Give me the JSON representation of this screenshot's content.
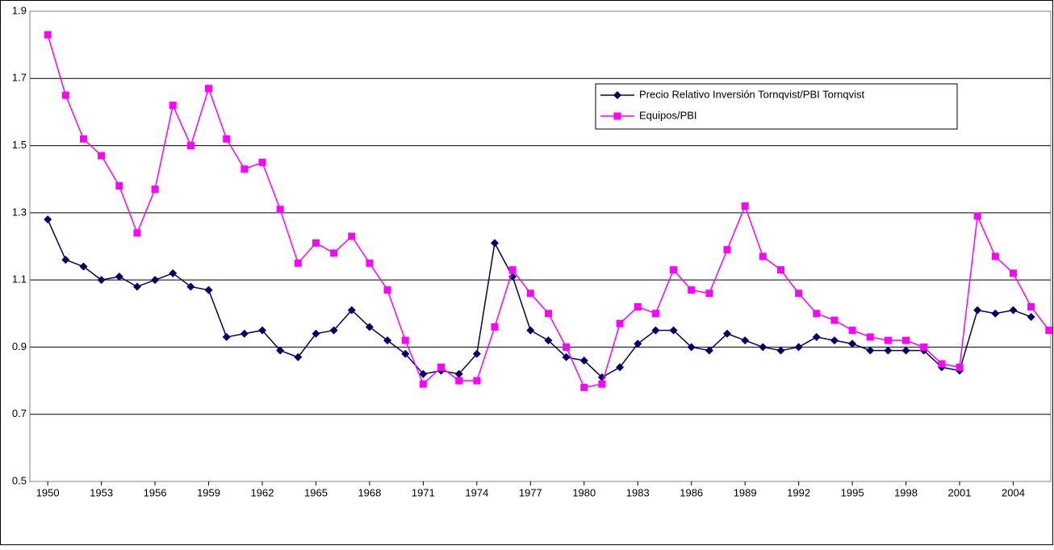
{
  "chart_data": {
    "type": "line",
    "x": [
      1950,
      1951,
      1952,
      1953,
      1954,
      1955,
      1956,
      1957,
      1958,
      1959,
      1960,
      1961,
      1962,
      1963,
      1964,
      1965,
      1966,
      1967,
      1968,
      1969,
      1970,
      1971,
      1972,
      1973,
      1974,
      1975,
      1976,
      1977,
      1978,
      1979,
      1980,
      1981,
      1982,
      1983,
      1984,
      1985,
      1986,
      1987,
      1988,
      1989,
      1990,
      1991,
      1992,
      1993,
      1994,
      1995,
      1996,
      1997,
      1998,
      1999,
      2000,
      2001,
      2002,
      2003,
      2004,
      2005,
      2006
    ],
    "xlim": [
      1949,
      2006.1
    ],
    "xticks": [
      1950,
      1953,
      1956,
      1959,
      1962,
      1965,
      1968,
      1971,
      1974,
      1977,
      1980,
      1983,
      1986,
      1989,
      1992,
      1995,
      1998,
      2001,
      2004
    ],
    "ylim": [
      0.5,
      1.9
    ],
    "yticks": [
      {
        "value": 0.5,
        "label": "0.5"
      },
      {
        "value": 0.7,
        "label": "0.7"
      },
      {
        "value": 0.9,
        "label": "0.9"
      },
      {
        "value": 1.1,
        "label": "1.1"
      },
      {
        "value": 1.3,
        "label": "1.3"
      },
      {
        "value": 1.5,
        "label": "1.5"
      },
      {
        "value": 1.7,
        "label": "1.7"
      },
      {
        "value": 1.9,
        "label": "1.9"
      }
    ],
    "grid": true,
    "legend": "upper-right",
    "series": [
      {
        "name": "Precio Relativo Inversión Tornqvist/PBI Tornqvist",
        "color": "#000066",
        "marker": "diamond",
        "values": [
          1.28,
          1.16,
          1.14,
          1.1,
          1.11,
          1.08,
          1.1,
          1.12,
          1.08,
          1.07,
          0.93,
          0.94,
          0.95,
          0.89,
          0.87,
          0.94,
          0.95,
          1.01,
          0.96,
          0.92,
          0.88,
          0.82,
          0.83,
          0.82,
          0.88,
          1.21,
          1.11,
          0.95,
          0.92,
          0.87,
          0.86,
          0.81,
          0.84,
          0.91,
          0.95,
          0.95,
          0.9,
          0.89,
          0.94,
          0.92,
          0.9,
          0.89,
          0.9,
          0.93,
          0.92,
          0.91,
          0.89,
          0.89,
          0.89,
          0.89,
          0.84,
          0.83,
          1.01,
          1.0,
          1.01,
          0.99,
          null
        ]
      },
      {
        "name": "Equipos/PBI",
        "color": "#ff00ff",
        "marker": "square",
        "values": [
          1.83,
          1.65,
          1.52,
          1.47,
          1.38,
          1.24,
          1.37,
          1.62,
          1.5,
          1.67,
          1.52,
          1.43,
          1.45,
          1.31,
          1.15,
          1.21,
          1.18,
          1.23,
          1.15,
          1.07,
          0.92,
          0.79,
          0.84,
          0.8,
          0.8,
          0.96,
          1.13,
          1.06,
          1.0,
          0.9,
          0.78,
          0.79,
          0.97,
          1.02,
          1.0,
          1.13,
          1.07,
          1.06,
          1.19,
          1.32,
          1.17,
          1.13,
          1.06,
          1.0,
          0.98,
          0.95,
          0.93,
          0.92,
          0.92,
          0.9,
          0.85,
          0.84,
          1.29,
          1.17,
          1.12,
          1.02,
          0.95
        ]
      }
    ]
  }
}
